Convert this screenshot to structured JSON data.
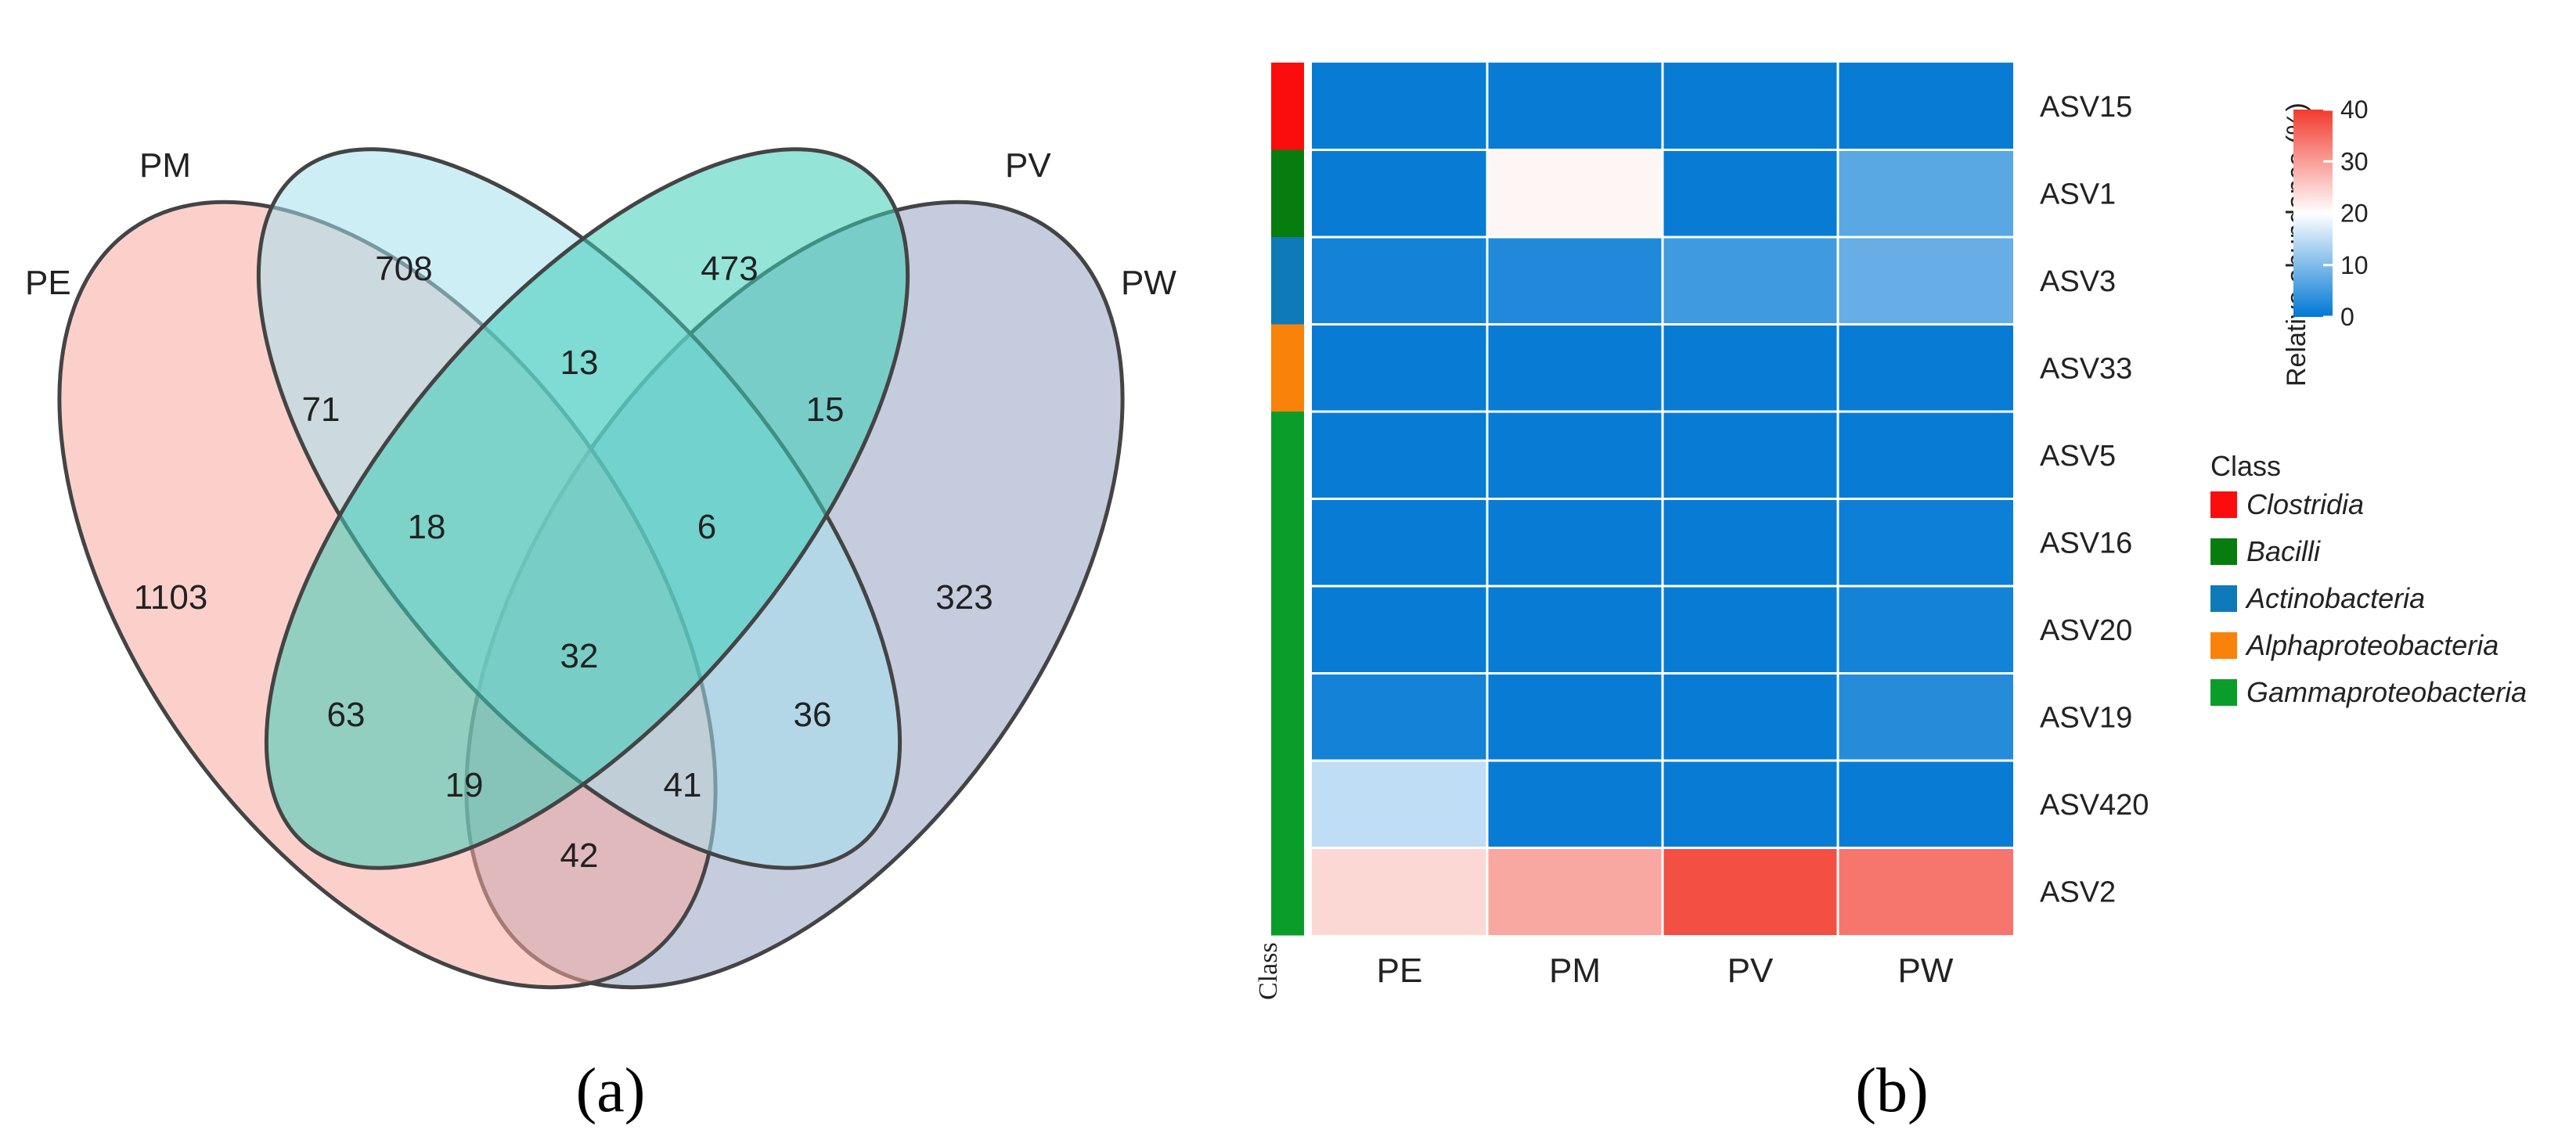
{
  "chart_data": [
    {
      "type": "venn",
      "panel_label": "(a)",
      "sets": [
        {
          "name": "PE",
          "color": "#f8a9a1"
        },
        {
          "name": "PM",
          "color": "#a6e0ee"
        },
        {
          "name": "PV",
          "color": "#3ccdb8"
        },
        {
          "name": "PW",
          "color": "#94a3c2"
        }
      ],
      "regions": {
        "PE": 1103,
        "PM": 708,
        "PV": 473,
        "PW": 323,
        "PE_PM": 71,
        "PM_PV": 13,
        "PV_PW": 15,
        "PE_PW": 42,
        "PE_PV": 63,
        "PM_PW": 36,
        "PE_PM_PV": 18,
        "PM_PV_PW": 6,
        "PE_PV_PW": 19,
        "PE_PM_PW": 41,
        "PE_PM_PV_PW": 32
      }
    },
    {
      "type": "heatmap",
      "panel_label": "(b)",
      "columns": [
        "PE",
        "PM",
        "PV",
        "PW"
      ],
      "rows": [
        "ASV15",
        "ASV1",
        "ASV3",
        "ASV33",
        "ASV5",
        "ASV16",
        "ASV20",
        "ASV19",
        "ASV420",
        "ASV2"
      ],
      "values": [
        [
          0.6,
          0.6,
          0.6,
          0.6
        ],
        [
          0.6,
          21.0,
          0.6,
          7.0
        ],
        [
          1.5,
          2.5,
          5.0,
          8.0
        ],
        [
          0.6,
          0.6,
          0.6,
          0.6
        ],
        [
          0.6,
          0.6,
          0.6,
          0.6
        ],
        [
          0.6,
          0.6,
          0.6,
          1.0
        ],
        [
          0.6,
          0.6,
          0.6,
          1.5
        ],
        [
          1.5,
          0.6,
          0.6,
          3.0
        ],
        [
          15.0,
          0.6,
          0.6,
          0.6
        ],
        [
          24.0,
          29.0,
          38.0,
          34.0
        ]
      ],
      "row_classes": [
        "Clostridia",
        "Bacilli",
        "Actinobacteria",
        "Alphaproteobacteria",
        "Gammaproteobacteria",
        "Gammaproteobacteria",
        "Gammaproteobacteria",
        "Gammaproteobacteria",
        "Gammaproteobacteria",
        "Gammaproteobacteria"
      ],
      "class_axis_label": "Class",
      "colorbar": {
        "title": "Relative abundance (%)",
        "range": [
          0,
          40
        ],
        "ticks": [
          0,
          10,
          20,
          30,
          40
        ],
        "low_color": "#0078d4",
        "mid_color": "#ffffff",
        "high_color": "#f23b2e",
        "mid_value": 20
      },
      "legend": {
        "title": "Class",
        "entries": [
          {
            "name": "Clostridia",
            "color": "#fb0d0d"
          },
          {
            "name": "Bacilli",
            "color": "#077d10"
          },
          {
            "name": "Actinobacteria",
            "color": "#0f7ab8"
          },
          {
            "name": "Alphaproteobacteria",
            "color": "#f9820a"
          },
          {
            "name": "Gammaproteobacteria",
            "color": "#0b9d2a"
          }
        ]
      }
    }
  ]
}
